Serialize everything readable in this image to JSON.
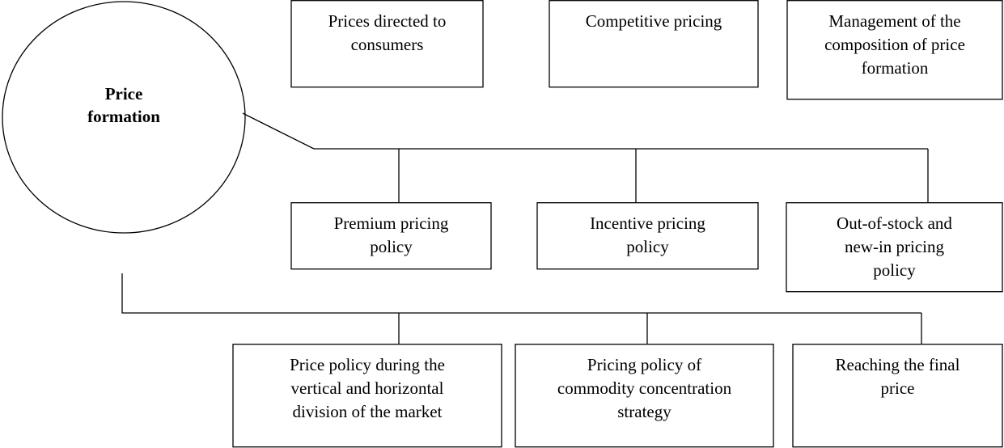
{
  "center": {
    "lines": [
      "Price",
      "formation"
    ]
  },
  "nodes": [
    {
      "lines": [
        "Prices directed to",
        "consumers"
      ]
    },
    {
      "lines": [
        "Competitive pricing"
      ]
    },
    {
      "lines": [
        "Management of the",
        "composition of price",
        "formation"
      ]
    },
    {
      "lines": [
        "Premium pricing",
        "policy"
      ]
    },
    {
      "lines": [
        "Incentive pricing",
        "policy"
      ]
    },
    {
      "lines": [
        "Out-of-stock and",
        "new-in pricing",
        "policy"
      ]
    },
    {
      "lines": [
        "Price policy during the",
        "vertical and horizontal",
        "division of the market"
      ]
    },
    {
      "lines": [
        "Pricing policy of",
        "commodity concentration",
        "strategy"
      ]
    },
    {
      "lines": [
        "Reaching the final",
        "price"
      ]
    }
  ]
}
